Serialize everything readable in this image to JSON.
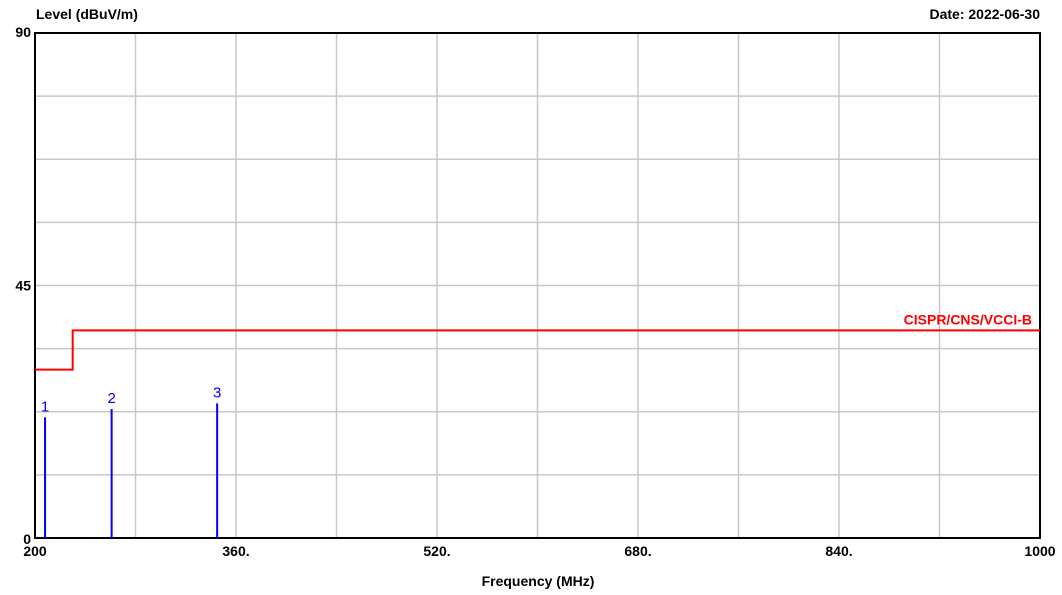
{
  "chart_data": {
    "type": "line",
    "ylabel": "Level (dBuV/m)",
    "xlabel": "Frequency (MHz)",
    "date_label": "Date: 2022-06-30",
    "xlim": [
      200,
      1000
    ],
    "ylim": [
      0,
      90
    ],
    "x_ticks": [
      200,
      360,
      520,
      680,
      840,
      1000
    ],
    "x_tick_labels": [
      "200",
      "360.",
      "520.",
      "680.",
      "840.",
      "1000"
    ],
    "x_grid_step": 80,
    "y_ticks": [
      0,
      45,
      90
    ],
    "y_tick_labels": [
      "0",
      "45",
      "90"
    ],
    "y_grid_step": 11.25,
    "grid": true,
    "limit_line": {
      "name": "CISPR/CNS/VCCI-B",
      "color": "#ff0000",
      "points": [
        [
          200,
          30
        ],
        [
          230,
          30
        ],
        [
          230,
          37
        ],
        [
          1000,
          37
        ]
      ]
    },
    "markers": {
      "color": "#0000ff",
      "points": [
        {
          "label": "1",
          "x": 208,
          "y": 21.5
        },
        {
          "label": "2",
          "x": 261,
          "y": 23.0
        },
        {
          "label": "3",
          "x": 345,
          "y": 24.0
        }
      ]
    }
  }
}
